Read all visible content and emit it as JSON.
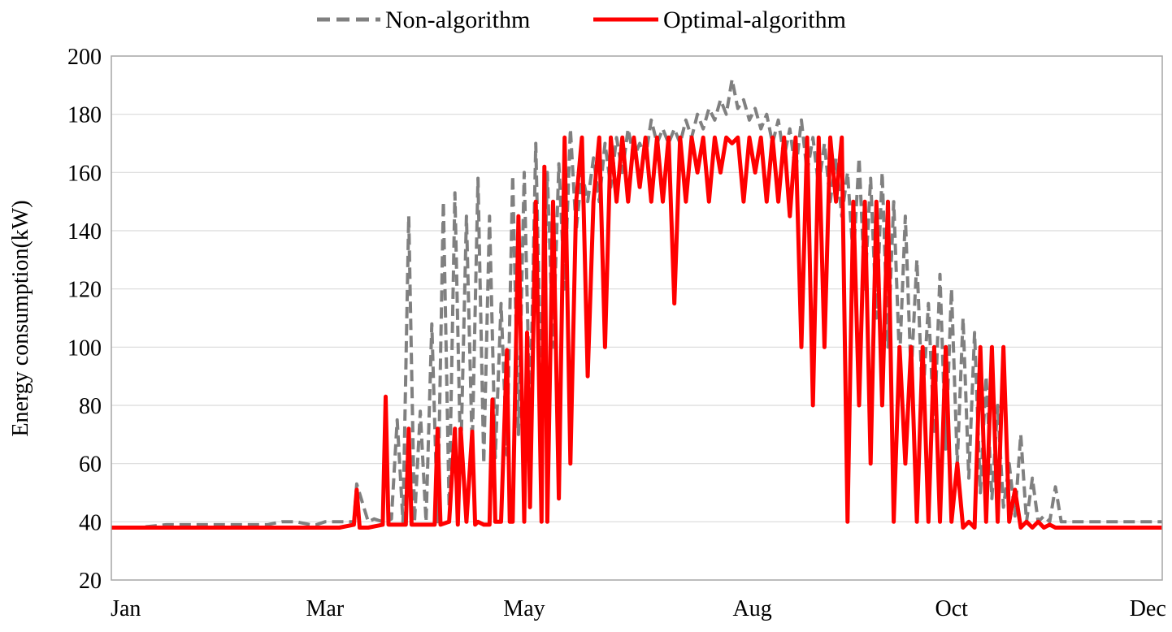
{
  "chart_data": {
    "type": "line",
    "title": "",
    "xlabel": "",
    "ylabel": "Energy consumption(kW)",
    "ylim": [
      20,
      200
    ],
    "yticks": [
      20,
      40,
      60,
      80,
      100,
      120,
      140,
      160,
      180,
      200
    ],
    "xlim": [
      1,
      365
    ],
    "xticks": [
      {
        "label": "Jan",
        "day": 6
      },
      {
        "label": "Mar",
        "day": 75
      },
      {
        "label": "May",
        "day": 144
      },
      {
        "label": "Aug",
        "day": 223
      },
      {
        "label": "Oct",
        "day": 292
      },
      {
        "label": "Dec",
        "day": 360
      }
    ],
    "grid": "horizontal",
    "legend_position": "top-center",
    "colors": {
      "non_algorithm": "#808080",
      "optimal_algorithm": "#ff0000",
      "grid": "#d9d9d9",
      "frame": "#a6a6a6"
    },
    "series": [
      {
        "name": "Non-algorithm",
        "style": "dashed",
        "x": [
          1,
          10,
          20,
          30,
          40,
          50,
          55,
          60,
          65,
          70,
          72,
          75,
          80,
          85,
          86,
          90,
          92,
          95,
          96,
          98,
          100,
          102,
          104,
          106,
          108,
          110,
          112,
          114,
          116,
          118,
          120,
          122,
          124,
          126,
          128,
          130,
          132,
          134,
          136,
          138,
          140,
          142,
          144,
          146,
          148,
          150,
          152,
          154,
          156,
          158,
          160,
          162,
          164,
          166,
          168,
          170,
          172,
          174,
          176,
          178,
          180,
          182,
          184,
          186,
          188,
          190,
          192,
          194,
          196,
          198,
          200,
          202,
          204,
          206,
          208,
          210,
          212,
          214,
          216,
          218,
          220,
          222,
          224,
          226,
          228,
          230,
          232,
          234,
          236,
          238,
          240,
          242,
          244,
          246,
          248,
          250,
          252,
          254,
          256,
          258,
          260,
          262,
          264,
          266,
          268,
          270,
          272,
          274,
          276,
          278,
          280,
          282,
          284,
          286,
          288,
          290,
          292,
          294,
          296,
          298,
          300,
          302,
          304,
          306,
          308,
          310,
          312,
          314,
          316,
          318,
          320,
          322,
          324,
          326,
          328,
          330,
          335,
          340,
          345,
          350,
          355,
          360,
          365
        ],
        "y": [
          38,
          38,
          39,
          39,
          39,
          39,
          39,
          40,
          40,
          39,
          39,
          40,
          40,
          40,
          53,
          40,
          41,
          40,
          40,
          41,
          75,
          40,
          145,
          40,
          78,
          40,
          108,
          40,
          150,
          45,
          153,
          60,
          145,
          65,
          158,
          60,
          145,
          62,
          115,
          63,
          159,
          70,
          160,
          75,
          170,
          80,
          160,
          100,
          163,
          120,
          175,
          140,
          160,
          150,
          165,
          150,
          170,
          155,
          172,
          160,
          175,
          165,
          170,
          165,
          178,
          170,
          175,
          170,
          175,
          170,
          178,
          172,
          180,
          175,
          182,
          178,
          185,
          180,
          192,
          182,
          185,
          178,
          182,
          175,
          180,
          170,
          178,
          165,
          175,
          160,
          178,
          160,
          172,
          155,
          170,
          150,
          165,
          145,
          160,
          130,
          165,
          120,
          158,
          110,
          160,
          100,
          150,
          95,
          145,
          90,
          130,
          80,
          115,
          70,
          125,
          65,
          120,
          60,
          110,
          55,
          105,
          50,
          90,
          48,
          80,
          45,
          60,
          42,
          70,
          40,
          55,
          40,
          42,
          40,
          52,
          40,
          40,
          40,
          40,
          40,
          40,
          40,
          40
        ]
      },
      {
        "name": "Optimal-algorithm",
        "style": "solid",
        "x": [
          1,
          20,
          40,
          60,
          80,
          85,
          86,
          87,
          90,
          95,
          96,
          97,
          100,
          103,
          104,
          105,
          110,
          113,
          114,
          115,
          118,
          120,
          121,
          122,
          124,
          126,
          127,
          128,
          130,
          132,
          133,
          134,
          136,
          138,
          139,
          140,
          142,
          144,
          145,
          146,
          148,
          150,
          151,
          152,
          154,
          156,
          158,
          160,
          162,
          164,
          166,
          168,
          170,
          172,
          174,
          176,
          178,
          180,
          182,
          184,
          186,
          188,
          190,
          192,
          194,
          196,
          198,
          200,
          202,
          204,
          206,
          208,
          210,
          212,
          214,
          216,
          218,
          220,
          222,
          224,
          226,
          228,
          230,
          232,
          234,
          236,
          238,
          240,
          242,
          244,
          246,
          248,
          250,
          252,
          254,
          256,
          258,
          260,
          262,
          264,
          266,
          268,
          270,
          272,
          274,
          276,
          278,
          280,
          282,
          284,
          286,
          288,
          290,
          292,
          294,
          296,
          298,
          300,
          302,
          304,
          306,
          308,
          310,
          312,
          314,
          316,
          318,
          320,
          322,
          324,
          326,
          328,
          330,
          335,
          340,
          345,
          350,
          355,
          360,
          365
        ],
        "y": [
          38,
          38,
          38,
          38,
          38,
          39,
          51,
          38,
          38,
          39,
          83,
          39,
          39,
          39,
          72,
          39,
          39,
          39,
          72,
          39,
          40,
          72,
          39,
          72,
          40,
          71,
          39,
          40,
          39,
          39,
          82,
          40,
          40,
          99,
          40,
          40,
          145,
          40,
          105,
          45,
          150,
          40,
          162,
          40,
          150,
          48,
          172,
          60,
          150,
          172,
          90,
          150,
          172,
          100,
          172,
          150,
          172,
          150,
          172,
          155,
          172,
          150,
          172,
          150,
          172,
          115,
          172,
          150,
          172,
          160,
          172,
          150,
          172,
          160,
          172,
          170,
          172,
          150,
          172,
          160,
          172,
          150,
          172,
          150,
          172,
          145,
          172,
          100,
          172,
          80,
          172,
          100,
          172,
          150,
          172,
          40,
          150,
          80,
          150,
          60,
          150,
          80,
          150,
          40,
          100,
          60,
          100,
          40,
          100,
          40,
          100,
          40,
          100,
          40,
          60,
          38,
          40,
          38,
          100,
          40,
          100,
          40,
          100,
          40,
          51,
          38,
          40,
          38,
          40,
          38,
          39,
          38,
          38,
          38,
          38,
          38,
          38,
          38,
          38,
          38
        ]
      }
    ]
  }
}
